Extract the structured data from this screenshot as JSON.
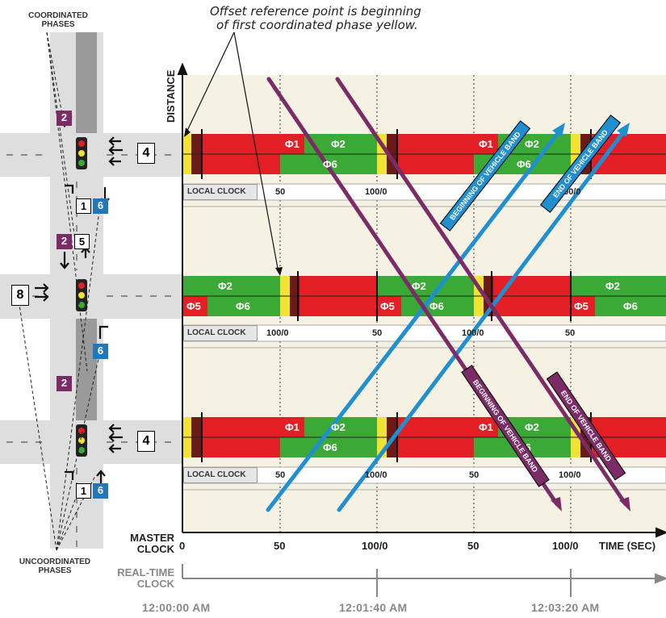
{
  "labels": {
    "coordinated_phases": "COORDINATED PHASES",
    "uncoordinated_phases": "UNCOORDINATED PHASES",
    "note_line1": "Offset reference point is beginning",
    "note_line2": "of first coordinated phase yellow.",
    "distance": "DISTANCE",
    "master_clock": "MASTER CLOCK",
    "real_time_clock": "REAL-TIME CLOCK",
    "time_axis": "TIME (SEC)",
    "local_clock": "LOCAL CLOCK"
  },
  "master_ticks": [
    "0",
    "50",
    "100/0",
    "50",
    "100/0"
  ],
  "real_time_ticks": [
    "12:00:00 AM",
    "12:01:40 AM",
    "12:03:20 AM"
  ],
  "intersections": [
    {
      "local_clock_ticks": [
        "50",
        "100/0",
        "50",
        "100/0"
      ],
      "phase_labels": [
        "Φ1",
        "Φ2",
        "Φ6",
        "Φ1",
        "Φ2",
        "Φ6"
      ]
    },
    {
      "local_clock_ticks": [
        "100/0",
        "50",
        "100/0",
        "50"
      ],
      "phase_labels": [
        "Φ2",
        "Φ5",
        "Φ6",
        "Φ2",
        "Φ5",
        "Φ6",
        "Φ2",
        "Φ5",
        "Φ6"
      ]
    },
    {
      "local_clock_ticks": [
        "50",
        "100/0",
        "50",
        "100/0"
      ],
      "phase_labels": [
        "Φ1",
        "Φ2",
        "Φ6",
        "Φ1",
        "Φ2",
        "Φ6"
      ]
    }
  ],
  "band_labels": {
    "begin": "BEGINNING OF VEHICLE BAND",
    "end": "END OF VEHICLE BAND"
  },
  "map_numbers": {
    "top_2": "2",
    "top_4": "4",
    "top_1": "1",
    "top_6": "6",
    "mid_2": "2",
    "mid_5": "5",
    "mid_8": "8",
    "mid_6": "6",
    "bot_2": "2",
    "bot_4": "4",
    "bot_1": "1",
    "bot_6": "6"
  },
  "colors": {
    "red": "#e31e24",
    "green": "#3aa935",
    "yellow": "#f2e235",
    "dark_red": "#5a1a1a",
    "blue_band": "#1f8fd0",
    "purple_band": "#7b2b65",
    "plot_bg": "#f6f2e3"
  }
}
